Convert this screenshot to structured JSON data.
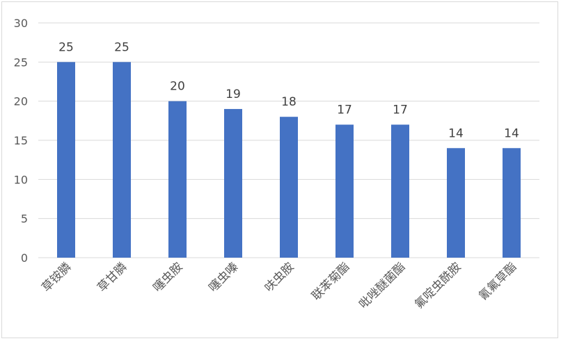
{
  "chart_data": {
    "type": "bar",
    "title": "",
    "xlabel": "",
    "ylabel": "",
    "categories": [
      "草铵膦",
      "草甘膦",
      "噻虫胺",
      "噻虫嗪",
      "呋虫胺",
      "联苯菊酯",
      "吡唑醚菌酯",
      "氟啶虫酰胺",
      "氰氟草酯"
    ],
    "values": [
      25,
      25,
      20,
      19,
      18,
      17,
      17,
      14,
      14
    ],
    "y_ticks": [
      0,
      5,
      10,
      15,
      20,
      25,
      30
    ],
    "ylim": [
      0,
      30
    ],
    "grid": true,
    "data_labels": true,
    "bar_color": "#4472C4",
    "grid_color": "#d9d9d9",
    "legend": "none"
  }
}
